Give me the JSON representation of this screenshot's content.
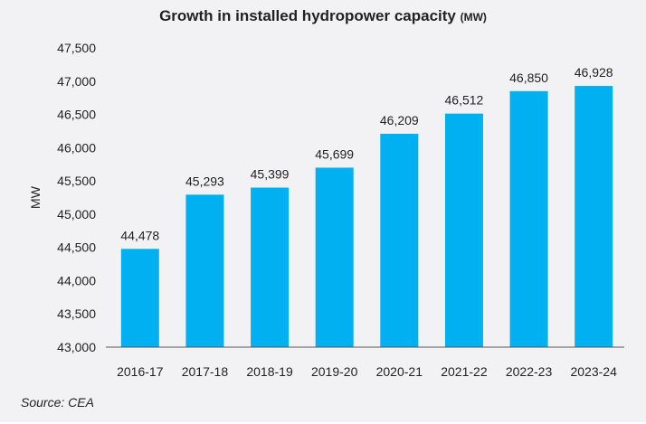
{
  "chart_data": {
    "type": "bar",
    "title": "Growth in installed hydropower capacity",
    "title_unit": "(MW)",
    "ylabel": "MW",
    "xlabel": "",
    "categories": [
      "2016-17",
      "2017-18",
      "2018-19",
      "2019-20",
      "2020-21",
      "2021-22",
      "2022-23",
      "2023-24"
    ],
    "values": [
      44478,
      45293,
      45399,
      45699,
      46209,
      46512,
      46850,
      46928
    ],
    "data_labels": [
      "44,478",
      "45,293",
      "45,399",
      "45,699",
      "46,209",
      "46,512",
      "46,850",
      "46,928"
    ],
    "ylim": [
      43000,
      47500
    ],
    "yticks": [
      "43,000",
      "43,500",
      "44,000",
      "44,500",
      "45,000",
      "45,500",
      "46,000",
      "46,500",
      "47,000",
      "47,500"
    ],
    "grid": false,
    "bar_color": "#00b0f0",
    "background": "#f2f2f4"
  },
  "source": "Source: CEA"
}
